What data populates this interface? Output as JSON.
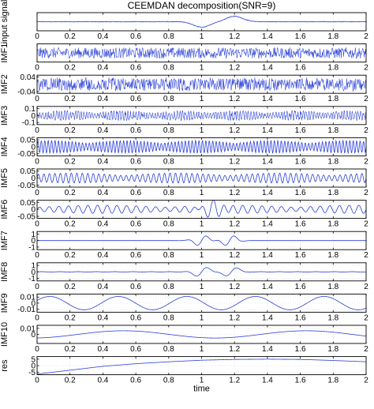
{
  "figure": {
    "title": "CEEMDAN decomposition(SNR=9)",
    "xlabel": "time"
  },
  "chart_data": {
    "type": "line",
    "title": "CEEMDAN decomposition(SNR=9)",
    "xlabel": "time",
    "xlim": [
      0,
      2
    ],
    "x_ticks": [
      "0",
      "0.2",
      "0.4",
      "0.6",
      "0.8",
      "1",
      "1.2",
      "1.4",
      "1.6",
      "1.8",
      "2"
    ],
    "line_color": "#2a3fd6",
    "grid": true,
    "panels": [
      {
        "ylabel": "input signal",
        "ylim": [
          -1.5,
          1.5
        ],
        "ytick_labels": [],
        "description": "noisy signal with two wave packets near t=1.0 and t=1.2",
        "points": [
          [
            0,
            0.05
          ],
          [
            0.2,
            0.0
          ],
          [
            0.4,
            0.05
          ],
          [
            0.6,
            0.0
          ],
          [
            0.8,
            0.1
          ],
          [
            0.9,
            -0.3
          ],
          [
            1.0,
            -1.0
          ],
          [
            1.1,
            0.3
          ],
          [
            1.2,
            1.0
          ],
          [
            1.3,
            0.3
          ],
          [
            1.4,
            0.0
          ],
          [
            1.6,
            0.05
          ],
          [
            1.8,
            0.0
          ],
          [
            2.0,
            0.0
          ]
        ]
      },
      {
        "ylabel": "IMF1",
        "ylim": [
          -1,
          1
        ],
        "ytick_labels": [],
        "description": "high-frequency noise, amplitude ~0.6"
      },
      {
        "ylabel": "IMF2",
        "ylim": [
          -0.05,
          0.05
        ],
        "ytick_labels": [
          "0.04",
          "-0.04"
        ],
        "description": "high-frequency oscillation, amplitude ~0.03"
      },
      {
        "ylabel": "IMF3",
        "ylim": [
          -0.13,
          0.13
        ],
        "ytick_labels": [
          "0.1",
          "0",
          "-0.1"
        ],
        "description": "high-frequency oscillation, amplitude ~0.07"
      },
      {
        "ylabel": "IMF4",
        "ylim": [
          -0.065,
          0.065
        ],
        "ytick_labels": [
          "0.05",
          "0",
          "-0.05"
        ],
        "description": "oscillation, amplitude ~0.045"
      },
      {
        "ylabel": "IMF5",
        "ylim": [
          -0.065,
          0.065
        ],
        "ytick_labels": [
          "0.05",
          "0",
          "-0.05"
        ],
        "description": "medium-frequency oscillation, amplitude ~0.035"
      },
      {
        "ylabel": "IMF6",
        "ylim": [
          -0.065,
          0.065
        ],
        "ytick_labels": [
          "0.05",
          "0",
          "-0.05"
        ],
        "description": "lower-frequency oscillation, larger near t=1.0-1.2"
      },
      {
        "ylabel": "IMF7",
        "ylim": [
          -1.4,
          1.4
        ],
        "ytick_labels": [
          "1",
          "0",
          "-1"
        ],
        "description": "two wave packets centered near t=1.0 and t=1.15",
        "points": [
          [
            0,
            0
          ],
          [
            0.8,
            0
          ],
          [
            0.9,
            -0.2
          ],
          [
            0.95,
            0.7
          ],
          [
            1.0,
            -0.9
          ],
          [
            1.05,
            0.8
          ],
          [
            1.1,
            -0.6
          ],
          [
            1.15,
            0.9
          ],
          [
            1.2,
            -0.8
          ],
          [
            1.25,
            0.5
          ],
          [
            1.35,
            0
          ],
          [
            2.0,
            0
          ]
        ]
      },
      {
        "ylabel": "IMF8",
        "ylim": [
          -1.4,
          1.4
        ],
        "ytick_labels": [
          "1",
          "0",
          "-1"
        ],
        "description": "wave packets near t=1.0 and t=1.2",
        "points": [
          [
            0,
            0
          ],
          [
            0.8,
            0.05
          ],
          [
            0.9,
            -0.4
          ],
          [
            0.95,
            0.8
          ],
          [
            1.0,
            -0.9
          ],
          [
            1.05,
            0.7
          ],
          [
            1.1,
            -0.3
          ],
          [
            1.15,
            0.9
          ],
          [
            1.2,
            -1.0
          ],
          [
            1.25,
            0.7
          ],
          [
            1.35,
            0
          ],
          [
            2.0,
            0
          ]
        ]
      },
      {
        "ylabel": "IMF9",
        "ylim": [
          -0.015,
          0.015
        ],
        "ytick_labels": [
          "0.01",
          "0",
          "-0.01"
        ],
        "description": "slow oscillation, about 4 cycles",
        "points": [
          [
            0,
            0
          ],
          [
            0.1,
            0.008
          ],
          [
            0.3,
            -0.011
          ],
          [
            0.5,
            0.009
          ],
          [
            0.7,
            -0.011
          ],
          [
            0.8,
            0.011
          ],
          [
            1.0,
            -0.012
          ],
          [
            1.2,
            0.011
          ],
          [
            1.4,
            -0.011
          ],
          [
            1.6,
            0.008
          ],
          [
            1.8,
            -0.008
          ],
          [
            2.0,
            0.003
          ]
        ]
      },
      {
        "ylabel": "IMF10",
        "ylim": [
          -0.015,
          0.015
        ],
        "ytick_labels": [
          "0.01",
          "0"
        ],
        "description": "very slow oscillation",
        "points": [
          [
            0,
            -0.005
          ],
          [
            0.4,
            0.004
          ],
          [
            0.8,
            -0.004
          ],
          [
            1.0,
            0
          ],
          [
            1.4,
            0.008
          ],
          [
            1.8,
            -0.002
          ],
          [
            2.0,
            -0.004
          ]
        ]
      },
      {
        "ylabel": "res",
        "ylim": [
          -7,
          7
        ],
        "ytick_labels": [
          "5",
          "0",
          "-5"
        ],
        "description": "smooth trend rising from about -5 to about 5",
        "points": [
          [
            0,
            -6.5
          ],
          [
            0.2,
            -3.5
          ],
          [
            0.4,
            -0.5
          ],
          [
            0.6,
            1.5
          ],
          [
            0.8,
            3.0
          ],
          [
            1.0,
            4.2
          ],
          [
            1.2,
            4.8
          ],
          [
            1.4,
            5.0
          ],
          [
            1.6,
            4.8
          ],
          [
            1.8,
            4.0
          ],
          [
            2.0,
            3.0
          ]
        ]
      }
    ]
  }
}
